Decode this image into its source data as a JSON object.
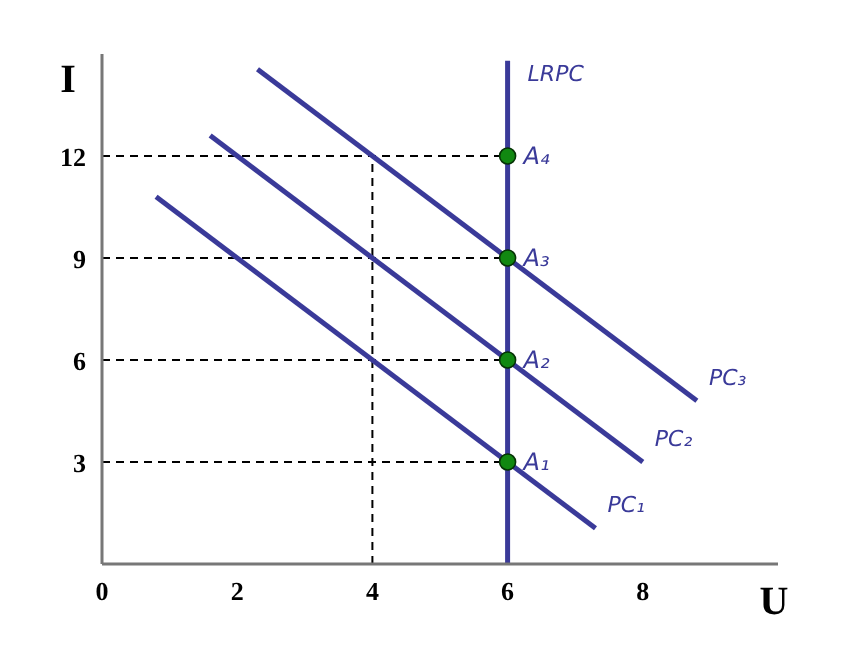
{
  "chart_data": {
    "type": "line",
    "xlabel": "U",
    "ylabel": "I",
    "xlim": [
      0,
      10
    ],
    "xticks": [
      0,
      2,
      4,
      6,
      8
    ],
    "ylim": [
      0,
      15
    ],
    "yticks": [
      3,
      6,
      9,
      12
    ],
    "grid": false,
    "series": [
      {
        "color": "#000000",
        "line_style": "dashed",
        "x": [
          0,
          6
        ],
        "values": [
          12,
          12
        ]
      },
      {
        "color": "#000000",
        "line_style": "dashed",
        "x": [
          0,
          6
        ],
        "values": [
          9,
          9
        ]
      },
      {
        "color": "#000000",
        "line_style": "dashed",
        "x": [
          0,
          6
        ],
        "values": [
          6,
          6
        ]
      },
      {
        "color": "#000000",
        "line_style": "dashed",
        "x": [
          0,
          6
        ],
        "values": [
          3,
          3
        ]
      },
      {
        "color": "#000000",
        "line_style": "dashed",
        "x": [
          4,
          4
        ],
        "values": [
          0,
          12
        ]
      },
      {
        "name": "PC₁",
        "color": "#3a3a99",
        "line_style": "solid",
        "x": [
          0.8,
          7.3
        ],
        "values": [
          10.8,
          1.05
        ]
      },
      {
        "name": "PC₂",
        "color": "#3a3a99",
        "line_style": "solid",
        "x": [
          1.6,
          8
        ],
        "values": [
          12.6,
          3
        ]
      },
      {
        "name": "PC₃",
        "color": "#3a3a99",
        "line_style": "solid",
        "x": [
          2.3,
          8.8
        ],
        "values": [
          14.55,
          4.8
        ]
      },
      {
        "name": "LRPC",
        "color": "#3a3a99",
        "line_style": "solid",
        "x": [
          6,
          6
        ],
        "values": [
          0,
          14.8
        ]
      },
      {
        "type": "scatter",
        "color": "#118811",
        "marker": "circle",
        "x": [
          6,
          6,
          6,
          6
        ],
        "values": [
          3,
          6,
          9,
          12
        ],
        "value_labels": [
          "A₁",
          "A₂",
          "A₃",
          "A₄"
        ]
      }
    ]
  }
}
